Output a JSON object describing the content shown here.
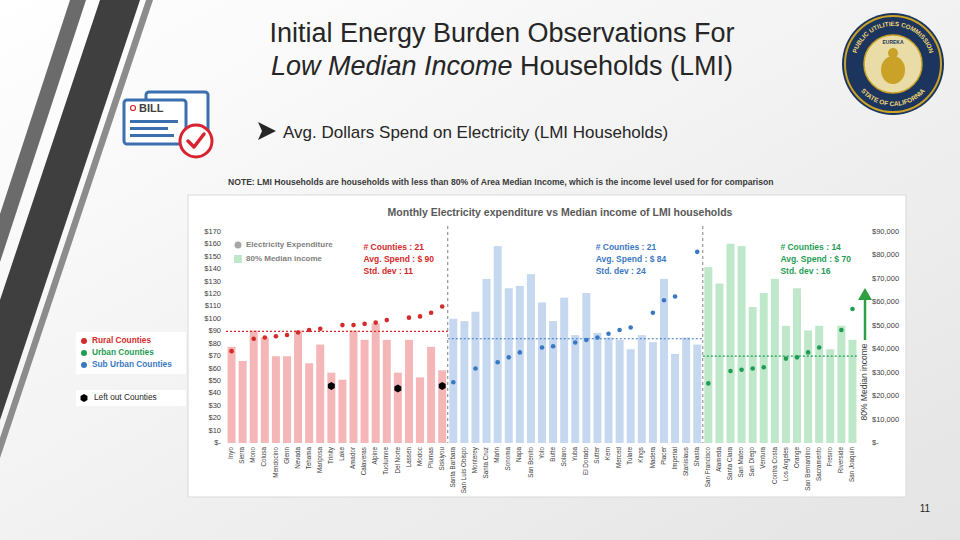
{
  "slide": {
    "title": [
      [
        {
          "text": "Initial Energy Burden Observations For"
        }
      ],
      [
        {
          "text": "Low Median Income",
          "style": "italic"
        },
        {
          "text": " Households (LMI)"
        }
      ]
    ],
    "subtitle": [
      {
        "text": "Avg. Dollars Spend on Electricity (LMI Households)"
      }
    ],
    "note": [
      {
        "text": "NOTE: LMI Households are households with less than 80% of Area Median Income, which is the income level used for for comparison",
        "style": "bold"
      }
    ],
    "icon_text": "BILL",
    "seal": {
      "top": "PUBLIC UTILITIES COMMISSION",
      "bottom": "STATE OF CALIFORNIA",
      "motto": "EUREKA"
    },
    "page_number": "11"
  },
  "chart_data": {
    "type": "bar",
    "title": "Monthly Electricity expenditure vs Median income of LMI households",
    "y2_label": "80% Median income",
    "grid": false,
    "legend": "left",
    "legend_entries": [
      {
        "name": "Electricity Expenditure",
        "color": "#a6a6a6",
        "marker": "circle"
      }
    ],
    "categories": [
      "Inyo",
      "Sierra",
      "Mono",
      "Colusa",
      "Mendocino",
      "Glenn",
      "Nevada",
      "Tehama",
      "Mariposa",
      "Trinity",
      "Lake",
      "Amador",
      "Calaveras",
      "Alpine",
      "Tuolumne",
      "Del Norte",
      "Lassen",
      "Modoc",
      "Plumas",
      "Siskiyou",
      "Santa Barbara",
      "San Luis Obispo",
      "Monterey",
      "Santa Cruz",
      "Marin",
      "Sonoma",
      "Napa",
      "San Benito",
      "Yolo",
      "Butte",
      "Solano",
      "Yuba",
      "El Dorado",
      "Sutter",
      "Kern",
      "Merced",
      "Tulare",
      "Kings",
      "Madera",
      "Placer",
      "Imperial",
      "Stanislaus",
      "Shasta",
      "San Francisco",
      "Alameda",
      "Santa Clara",
      "San Mateo",
      "San Diego",
      "Ventura",
      "Contra Costa",
      "Los Angeles",
      "Orange",
      "San Bernardino",
      "Sacramento",
      "Fresno",
      "Riverside",
      "San Joaquin"
    ],
    "ylim": [
      0,
      170
    ],
    "yticks": [
      {
        "value": 0,
        "label": "$-"
      },
      {
        "value": 10,
        "label": "$10"
      },
      {
        "value": 20,
        "label": "$20"
      },
      {
        "value": 30,
        "label": "$30"
      },
      {
        "value": 40,
        "label": "$40"
      },
      {
        "value": 50,
        "label": "$50"
      },
      {
        "value": 60,
        "label": "$60"
      },
      {
        "value": 70,
        "label": "$70"
      },
      {
        "value": 80,
        "label": "$80"
      },
      {
        "value": 90,
        "label": "$90"
      },
      {
        "value": 100,
        "label": "$100"
      },
      {
        "value": 110,
        "label": "$110"
      },
      {
        "value": 120,
        "label": "$120"
      },
      {
        "value": 130,
        "label": "$130"
      },
      {
        "value": 140,
        "label": "$140"
      },
      {
        "value": 150,
        "label": "$150"
      },
      {
        "value": 160,
        "label": "$160"
      },
      {
        "value": 170,
        "label": "$170"
      }
    ],
    "y2lim": [
      0,
      90000
    ],
    "y2ticks": [
      {
        "value": 0,
        "label": "$-"
      },
      {
        "value": 10000,
        "label": "$10,000"
      },
      {
        "value": 20000,
        "label": "$20,000"
      },
      {
        "value": 30000,
        "label": "$30,000"
      },
      {
        "value": 40000,
        "label": "$40,000"
      },
      {
        "value": 50000,
        "label": "$50,000"
      },
      {
        "value": 60000,
        "label": "$60,000"
      },
      {
        "value": 70000,
        "label": "$70,000"
      },
      {
        "value": 80000,
        "label": "$80,000"
      },
      {
        "value": 90000,
        "label": "$90,000"
      }
    ],
    "series": [
      {
        "name": "80% Median income",
        "type": "bar",
        "axis": "y2",
        "color": "#bfe8cb",
        "colors": [
          "#f4b6b6",
          "#f4b6b6",
          "#f4b6b6",
          "#f4b6b6",
          "#f4b6b6",
          "#f4b6b6",
          "#f4b6b6",
          "#f4b6b6",
          "#f4b6b6",
          "#f4b6b6",
          "#f4b6b6",
          "#f4b6b6",
          "#f4b6b6",
          "#f4b6b6",
          "#f4b6b6",
          "#f4b6b6",
          "#f4b6b6",
          "#f4b6b6",
          "#f4b6b6",
          "#f4b6b6",
          "#c5d8ef",
          "#c5d8ef",
          "#c5d8ef",
          "#c5d8ef",
          "#c5d8ef",
          "#c5d8ef",
          "#c5d8ef",
          "#c5d8ef",
          "#c5d8ef",
          "#c5d8ef",
          "#c5d8ef",
          "#c5d8ef",
          "#c5d8ef",
          "#c5d8ef",
          "#c5d8ef",
          "#c5d8ef",
          "#c5d8ef",
          "#c5d8ef",
          "#c5d8ef",
          "#c5d8ef",
          "#c5d8ef",
          "#c5d8ef",
          "#c5d8ef",
          "#bfe8cb",
          "#bfe8cb",
          "#bfe8cb",
          "#bfe8cb",
          "#bfe8cb",
          "#bfe8cb",
          "#bfe8cb",
          "#bfe8cb",
          "#bfe8cb",
          "#bfe8cb",
          "#bfe8cb",
          "#bfe8cb",
          "#bfe8cb",
          "#bfe8cb"
        ],
        "values": [
          41000,
          35000,
          48000,
          45000,
          37000,
          37000,
          48000,
          34000,
          42000,
          30000,
          27000,
          48000,
          44000,
          51000,
          44000,
          30000,
          44000,
          28000,
          41000,
          31000,
          53000,
          52000,
          56000,
          70000,
          84000,
          66000,
          67000,
          72000,
          60000,
          52000,
          62000,
          46000,
          64000,
          47000,
          45000,
          44000,
          40000,
          46000,
          43000,
          70000,
          38000,
          45000,
          42000,
          75000,
          68000,
          85000,
          84000,
          58000,
          64000,
          70000,
          50000,
          66000,
          48000,
          50000,
          40000,
          50000,
          44000
        ]
      },
      {
        "name": "Rural Counties",
        "type": "scatter",
        "color": "#d42a2a",
        "marker": "circle",
        "avg_spend": 90,
        "annotation": [
          "# Counties : 21",
          "Avg. Spend : $ 90",
          "Std. dev : 11"
        ],
        "values": [
          74,
          null,
          84,
          85,
          86,
          87,
          89,
          91,
          92,
          null,
          95,
          95,
          96,
          97,
          99,
          null,
          101,
          102,
          105,
          110,
          null,
          null,
          null,
          null,
          null,
          null,
          null,
          null,
          null,
          null,
          null,
          null,
          null,
          null,
          null,
          null,
          null,
          null,
          null,
          null,
          null,
          null,
          null,
          null,
          null,
          null,
          null,
          null,
          null,
          null,
          null,
          null,
          null,
          null,
          null,
          null,
          null
        ]
      },
      {
        "name": "Urban Counties",
        "type": "scatter",
        "color": "#1f9d55",
        "marker": "circle",
        "avg_spend": 70,
        "annotation": [
          "# Counties : 14",
          "Avg. Spend : $ 70",
          "Std. dev : 16"
        ],
        "values": [
          null,
          null,
          null,
          null,
          null,
          null,
          null,
          null,
          null,
          null,
          null,
          null,
          null,
          null,
          null,
          null,
          null,
          null,
          null,
          null,
          null,
          null,
          null,
          null,
          null,
          null,
          null,
          null,
          null,
          null,
          null,
          null,
          null,
          null,
          null,
          null,
          null,
          null,
          null,
          null,
          null,
          null,
          null,
          48,
          null,
          58,
          59,
          60,
          61,
          null,
          68,
          69,
          73,
          77,
          null,
          91,
          108
        ]
      },
      {
        "name": "Sub Urban Counties",
        "type": "scatter",
        "color": "#3a78c2",
        "marker": "circle",
        "avg_spend": 84,
        "annotation": [
          "# Counties : 21",
          "Avg. Spend : $ 84",
          "Std. dev : 24"
        ],
        "values": [
          null,
          null,
          null,
          null,
          null,
          null,
          null,
          null,
          null,
          null,
          null,
          null,
          null,
          null,
          null,
          null,
          null,
          null,
          null,
          null,
          49,
          null,
          60,
          null,
          65,
          69,
          73,
          null,
          77,
          78,
          null,
          81,
          83,
          85,
          88,
          91,
          93,
          null,
          105,
          115,
          118,
          null,
          154,
          null,
          null,
          null,
          null,
          null,
          null,
          null,
          null,
          null,
          null,
          null,
          null,
          null,
          null
        ]
      },
      {
        "name": "Left out Counties",
        "type": "scatter",
        "color": "#000000",
        "marker": "hexagon",
        "values": [
          null,
          null,
          null,
          null,
          null,
          null,
          null,
          null,
          null,
          46,
          null,
          null,
          null,
          null,
          null,
          44,
          null,
          null,
          null,
          46,
          null,
          null,
          null,
          null,
          null,
          null,
          null,
          null,
          null,
          null,
          null,
          null,
          null,
          null,
          null,
          null,
          null,
          null,
          null,
          null,
          null,
          null,
          null,
          null,
          null,
          null,
          null,
          null,
          null,
          null,
          null,
          null,
          null,
          null,
          null,
          null,
          null
        ]
      }
    ]
  }
}
